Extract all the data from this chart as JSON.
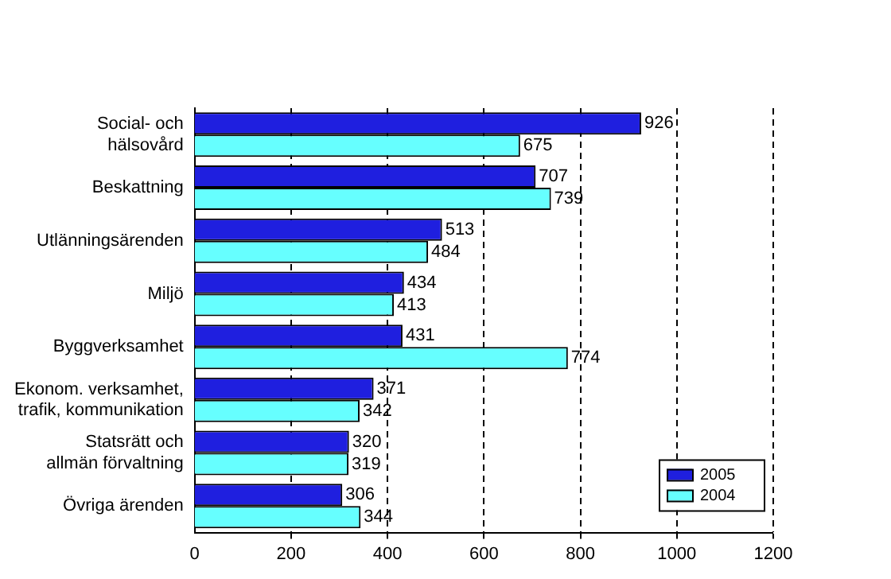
{
  "chart_data": {
    "type": "bar",
    "orientation": "horizontal",
    "categories": [
      "Social- och hälsovård",
      "Beskattning",
      "Utlänningsärenden",
      "Miljö",
      "Byggverksamhet",
      "Ekonom. verksamhet, trafik, kommunikation",
      "Statsrätt och allmän förvaltning",
      "Övriga ärenden"
    ],
    "series": [
      {
        "name": "2005",
        "color": "#1f1fdf",
        "values": [
          926,
          707,
          513,
          434,
          431,
          371,
          320,
          306
        ]
      },
      {
        "name": "2004",
        "color": "#66ffff",
        "values": [
          675,
          739,
          484,
          413,
          774,
          342,
          319,
          344
        ]
      }
    ],
    "xlim": [
      0,
      1200
    ],
    "xticks": [
      0,
      200,
      400,
      600,
      800,
      1000,
      1200
    ],
    "grid": "x",
    "line_style": "dashed",
    "legend": "bottom right",
    "data_labels": true
  }
}
